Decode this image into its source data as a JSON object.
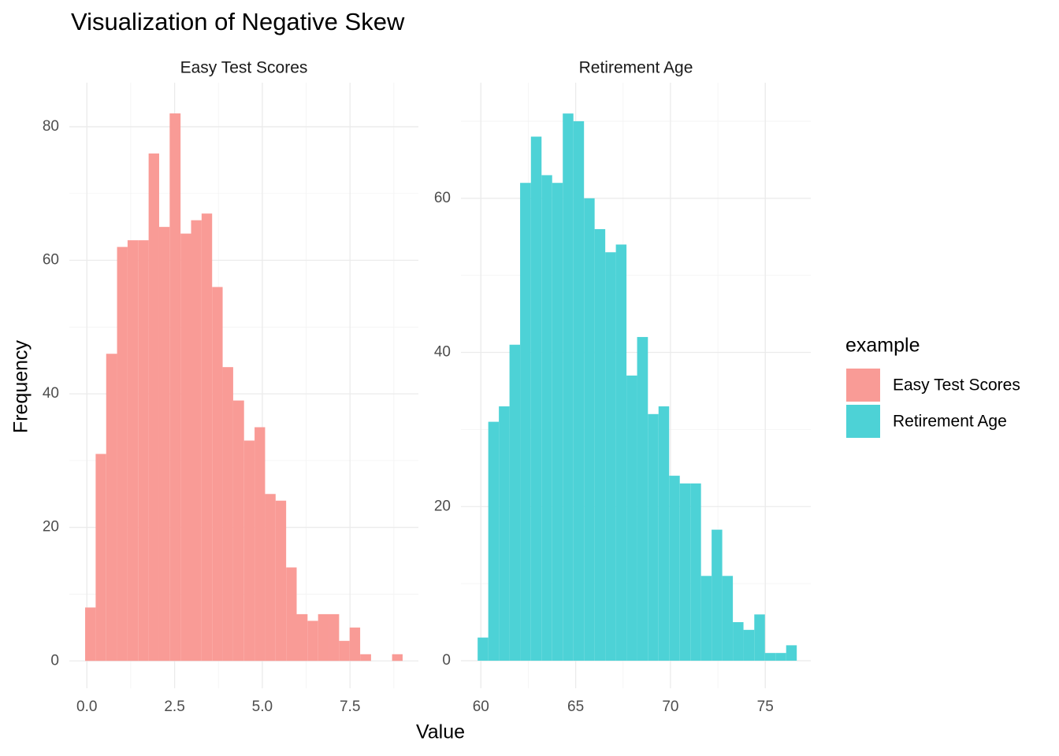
{
  "title": "Visualization of Negative Skew",
  "xlabel": "Value",
  "ylabel": "Frequency",
  "legend": {
    "title": "example",
    "position": "right"
  },
  "chart_data": [
    {
      "type": "histogram",
      "title": "Easy Test Scores",
      "series": [
        {
          "name": "Easy Test Scores",
          "color": "#f99b96",
          "bins": [
            -0.05,
            0.25,
            0.55,
            0.86,
            1.16,
            1.46,
            1.76,
            2.06,
            2.36,
            2.67,
            2.97,
            3.27,
            3.57,
            3.87,
            4.17,
            4.48,
            4.78,
            5.08,
            5.38,
            5.68,
            5.98,
            6.29,
            6.59,
            6.89,
            7.19,
            7.49,
            7.79,
            8.1,
            8.4,
            8.7,
            9.0
          ],
          "values": [
            8,
            31,
            46,
            62,
            63,
            63,
            76,
            65,
            82,
            64,
            66,
            67,
            56,
            44,
            39,
            33,
            35,
            25,
            24,
            14,
            7,
            6,
            7,
            7,
            3,
            5,
            1,
            0,
            0,
            1
          ]
        }
      ],
      "xlim": [
        -0.5,
        9.45
      ],
      "xticks": [
        {
          "value": 0,
          "label": "0.0"
        },
        {
          "value": 2.5,
          "label": "2.5"
        },
        {
          "value": 5,
          "label": "5.0"
        },
        {
          "value": 7.5,
          "label": "7.5"
        }
      ],
      "ylim": [
        -4.1,
        86.6
      ],
      "yticks": [
        0,
        20,
        40,
        60,
        80
      ],
      "grid": true
    },
    {
      "type": "histogram",
      "title": "Retirement Age",
      "series": [
        {
          "name": "Retirement Age",
          "color": "#4dd2d6",
          "bins": [
            59.83,
            60.39,
            60.95,
            61.51,
            62.07,
            62.64,
            63.2,
            63.76,
            64.32,
            64.88,
            65.44,
            66.0,
            66.56,
            67.12,
            67.68,
            68.24,
            68.81,
            69.37,
            69.93,
            70.49,
            71.05,
            71.61,
            72.17,
            72.73,
            73.29,
            73.85,
            74.42,
            74.98,
            75.54,
            76.1,
            76.66
          ],
          "values": [
            3,
            31,
            33,
            41,
            62,
            68,
            63,
            62,
            71,
            70,
            60,
            56,
            53,
            54,
            37,
            42,
            32,
            33,
            24,
            23,
            23,
            11,
            17,
            11,
            5,
            4,
            6,
            1,
            1,
            2
          ]
        }
      ],
      "xlim": [
        58.95,
        77.4
      ],
      "xticks": [
        60,
        65,
        70,
        75
      ],
      "ylim": [
        -3.58,
        75.0
      ],
      "yticks": [
        0,
        20,
        40,
        60
      ],
      "grid": true
    }
  ]
}
